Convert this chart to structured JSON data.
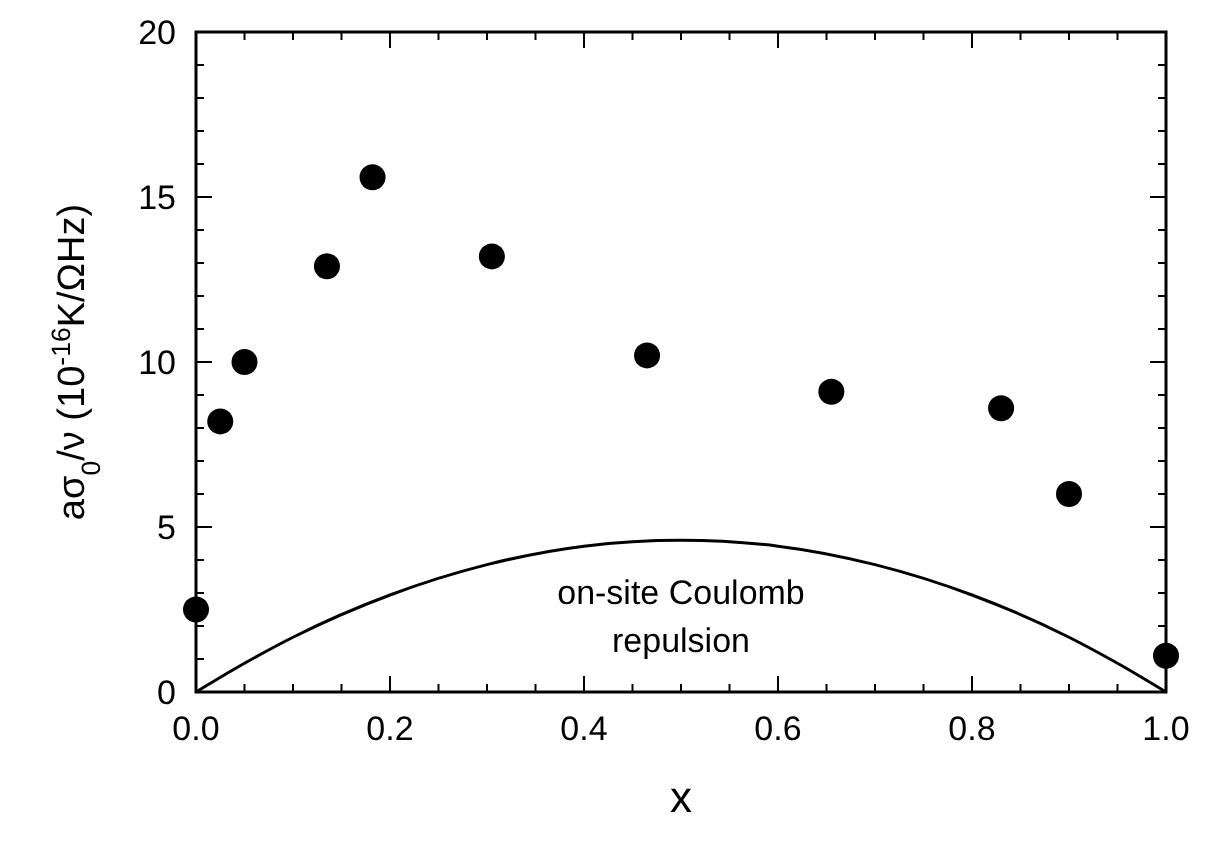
{
  "chart_data": {
    "type": "scatter",
    "xlabel": "x",
    "ylabel": "aσ$_{0}$/ν (10$^{-16}$K/ΩHz)",
    "xlim": [
      0,
      1
    ],
    "ylim": [
      0,
      20
    ],
    "xticks": [
      {
        "value": 0,
        "label": "0.0"
      },
      {
        "value": 0.05,
        "label": null
      },
      {
        "value": 0.1,
        "label": null
      },
      {
        "value": 0.15,
        "label": null
      },
      {
        "value": 0.2,
        "label": "0.2"
      },
      {
        "value": 0.25,
        "label": null
      },
      {
        "value": 0.3,
        "label": null
      },
      {
        "value": 0.35,
        "label": null
      },
      {
        "value": 0.4,
        "label": "0.4"
      },
      {
        "value": 0.45,
        "label": null
      },
      {
        "value": 0.5,
        "label": null
      },
      {
        "value": 0.55,
        "label": null
      },
      {
        "value": 0.6,
        "label": "0.6"
      },
      {
        "value": 0.65,
        "label": null
      },
      {
        "value": 0.7,
        "label": null
      },
      {
        "value": 0.75,
        "label": null
      },
      {
        "value": 0.8,
        "label": "0.8"
      },
      {
        "value": 0.85,
        "label": null
      },
      {
        "value": 0.9,
        "label": null
      },
      {
        "value": 0.95,
        "label": null
      },
      {
        "value": 1,
        "label": "1.0"
      }
    ],
    "yticks": [
      0,
      {
        "value": 1,
        "label": null
      },
      {
        "value": 2,
        "label": null
      },
      {
        "value": 3,
        "label": null
      },
      {
        "value": 4,
        "label": null
      },
      5,
      {
        "value": 6,
        "label": null
      },
      {
        "value": 7,
        "label": null
      },
      {
        "value": 8,
        "label": null
      },
      {
        "value": 9,
        "label": null
      },
      10,
      {
        "value": 11,
        "label": null
      },
      {
        "value": 12,
        "label": null
      },
      {
        "value": 13,
        "label": null
      },
      {
        "value": 14,
        "label": null
      },
      15,
      {
        "value": 16,
        "label": null
      },
      {
        "value": 17,
        "label": null
      },
      {
        "value": 18,
        "label": null
      },
      {
        "value": 19,
        "label": null
      },
      20
    ],
    "marker": "circle",
    "grid": false,
    "series": [
      {
        "color": "#000000",
        "x": [
          0,
          0.025,
          0.05,
          0.135,
          0.182,
          0.305,
          0.465,
          0.655,
          0.83,
          0.9,
          1.0
        ],
        "values": [
          2.5,
          8.2,
          10.0,
          12.9,
          15.6,
          13.2,
          10.2,
          9.1,
          8.6,
          6.0,
          1.1
        ]
      },
      {
        "type": "line",
        "color": "#000000",
        "marker": "none",
        "line_style": "solid",
        "x": [
          0,
          0.05,
          0.1,
          0.2,
          0.3,
          0.4,
          0.5,
          0.6,
          0.7,
          0.8,
          0.9,
          0.95,
          1.0
        ],
        "values": [
          0,
          0.87,
          1.66,
          2.94,
          3.86,
          4.42,
          4.6,
          4.42,
          3.86,
          2.94,
          1.66,
          0.87,
          0
        ]
      }
    ],
    "annotations": [
      "on-site Coulomb\nrepulsion"
    ]
  }
}
